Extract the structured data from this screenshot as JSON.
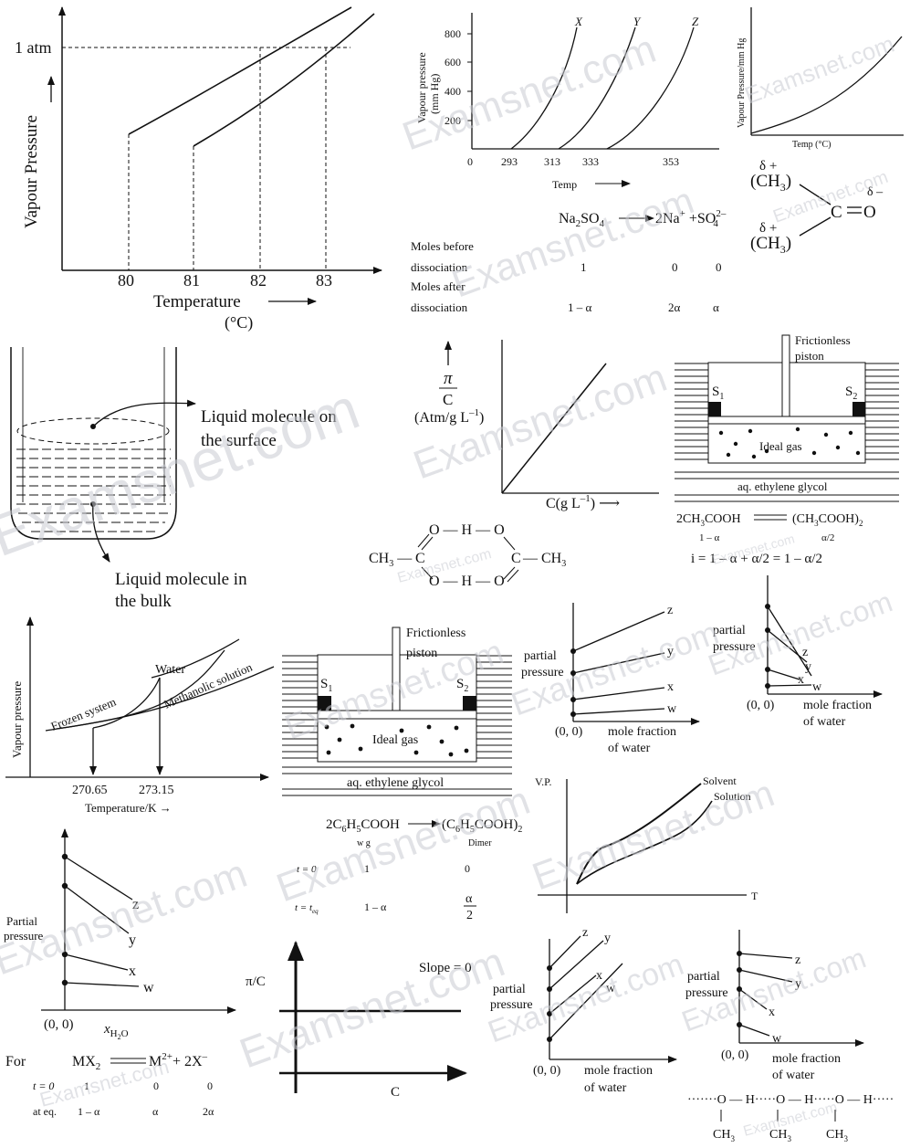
{
  "watermark": "Examsnet.com",
  "p1": {
    "y_axis": "Vapour Pressure",
    "x_axis": "Temperature",
    "x_unit": "(°C)",
    "atm_label": "1 atm",
    "ticks": [
      "80",
      "81",
      "82",
      "83"
    ]
  },
  "p2": {
    "y_axis_line1": "Vapour pressure",
    "y_axis_line2": "(mm Hg)",
    "y_ticks": [
      "800",
      "600",
      "400",
      "200"
    ],
    "x_ticks": [
      "0",
      "293",
      "313",
      "333",
      "353"
    ],
    "x_label": "Temp",
    "curves": [
      "X",
      "Y",
      "Z"
    ]
  },
  "p3": {
    "y_axis": "Vapour Pressure/mm Hg",
    "x_axis": "Temp (°C)"
  },
  "p4": {
    "reaction_left": "Na",
    "reaction_right": "2Na",
    "row_labels": [
      "Moles before",
      "dissociation",
      "Moles after",
      "dissociation"
    ],
    "before": [
      "1",
      "0",
      "0"
    ],
    "after": [
      "1 – α",
      "2α",
      "α"
    ]
  },
  "p5": {
    "dp": "δ +",
    "dm": "δ –",
    "ch3": "(CH",
    "c": "C",
    "o": "O"
  },
  "p6": {
    "surface": [
      "Liquid molecule on",
      "the surface"
    ],
    "bulk": [
      "Liquid molecule in",
      "the bulk"
    ]
  },
  "p7": {
    "y_num": "π",
    "y_den": "C",
    "y_unit": "(Atm/g L",
    "x_label": "C(g L"
  },
  "p8": {
    "piston_line1": "Frictionless",
    "piston_line2": "piston",
    "s1": "S",
    "s2": "S",
    "gas": "Ideal gas",
    "glycol": "aq. ethylene glycol",
    "eq_left": "2CH",
    "eq_right": "(CH",
    "eq_sub_left": "1 – α",
    "eq_sub_right": "α/2",
    "i_eq": "i = 1 – α + α/2 = 1 – α/2"
  },
  "p9": {
    "o_h_o": "O — H — O",
    "ch3": "CH",
    "c": "C"
  },
  "p10": {
    "y_axis": "Vapour pressure",
    "water": "Water",
    "methanolic": "Methanolic solution",
    "frozen": "Frozen system",
    "t1": "270.65",
    "t2": "273.15",
    "x_label": "Temperature/K →"
  },
  "p11": {
    "piston_line1": "Frictionless",
    "piston_line2": "piston",
    "s1": "S",
    "s2": "S",
    "gas": "Ideal gas",
    "glycol": "aq. ethylene glycol"
  },
  "p12": {
    "ylabel_line1": "partial",
    "ylabel_line2": "pressure",
    "lines": [
      "z",
      "y",
      "x",
      "w"
    ],
    "origin": "(0, 0)",
    "xlabel_line1": "mole fraction",
    "xlabel_line2": "of water"
  },
  "p13": {
    "ylabel_line1": "partial",
    "ylabel_line2": "pressure",
    "lines": [
      "z",
      "y",
      "x",
      "w"
    ],
    "origin": "(0, 0)",
    "xlabel_line1": "mole fraction",
    "xlabel_line2": "of water"
  },
  "p14": {
    "ylabel_line1": "Partial",
    "ylabel_line2": "pressure",
    "lines": [
      "z",
      "y",
      "x",
      "w"
    ],
    "origin": "(0, 0)",
    "xlabel": "x"
  },
  "p15": {
    "eq_left": "2C",
    "eq_right": "(C",
    "wg": "w g",
    "dimer": "Dimer",
    "t0": "t = 0",
    "teq": "t = t",
    "v1": "1",
    "v2": "0",
    "v3": "1 – α",
    "v4": "α",
    "v5": "2"
  },
  "p16": {
    "vp": "V.P.",
    "solvent": "Solvent",
    "solution": "Solution",
    "t": "T"
  },
  "p17": {
    "ylabel": "π/C",
    "slope": "Slope = 0",
    "xlabel": "C"
  },
  "p18": {
    "ylabel_line1": "partial",
    "ylabel_line2": "pressure",
    "lines": [
      "z",
      "y",
      "x",
      "w"
    ],
    "origin": "(0, 0)",
    "xlabel_line1": "mole fraction",
    "xlabel_line2": "of water"
  },
  "p19": {
    "ylabel_line1": "partial",
    "ylabel_line2": "pressure",
    "lines": [
      "z",
      "y",
      "x",
      "w"
    ],
    "origin": "(0, 0)",
    "xlabel_line1": "mole fraction",
    "xlabel_line2": "of water"
  },
  "p20": {
    "for": "For",
    "mx": "MX",
    "m": "M",
    "x": "+ 2X",
    "t0": "t = 0",
    "ateq": "at eq.",
    "r1": [
      "1",
      "0",
      "0"
    ],
    "r2": [
      "1 – α",
      "α",
      "2α"
    ]
  },
  "p21": {
    "chain": "·······O — H·····O — H·····O — H·····",
    "ch3": "CH"
  }
}
